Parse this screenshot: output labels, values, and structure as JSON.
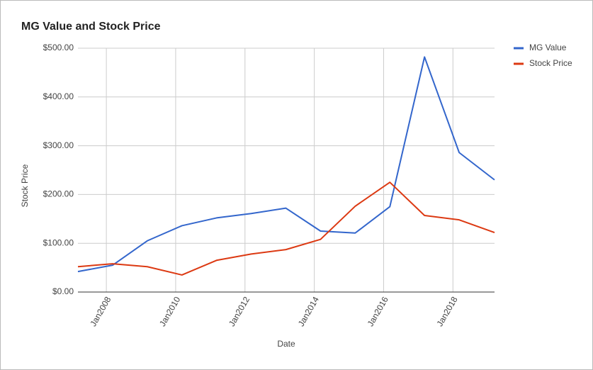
{
  "chart_data": {
    "type": "line",
    "title": "MG Value and Stock Price",
    "x_label": "Date",
    "y_label": "Stock Price",
    "x": [
      2007.18,
      2008.18,
      2009.18,
      2010.18,
      2011.18,
      2012.18,
      2013.18,
      2014.18,
      2015.18,
      2016.18,
      2017.18,
      2018.18,
      2019.2
    ],
    "series": [
      {
        "name": "MG Value",
        "color": "#3366cc",
        "values": [
          42,
          55,
          105,
          136,
          152,
          161,
          172,
          125,
          121,
          175,
          482,
          286,
          230
        ]
      },
      {
        "name": "Stock Price",
        "color": "#dc3912",
        "values": [
          52,
          58,
          52,
          35,
          65,
          78,
          87,
          108,
          176,
          225,
          157,
          148,
          122
        ]
      }
    ],
    "xlim": [
      2007.18,
      2019.2
    ],
    "xticks": [
      {
        "value": 2008,
        "label": "Jan2008"
      },
      {
        "value": 2010,
        "label": "Jan2010"
      },
      {
        "value": 2012,
        "label": "Jan2012"
      },
      {
        "value": 2014,
        "label": "Jan2014"
      },
      {
        "value": 2016,
        "label": "Jan2016"
      },
      {
        "value": 2018,
        "label": "Jan2018"
      }
    ],
    "ylim": [
      0,
      500
    ],
    "yticks": [
      {
        "value": 0,
        "label": "$0.00"
      },
      {
        "value": 100,
        "label": "$100.00"
      },
      {
        "value": 200,
        "label": "$200.00"
      },
      {
        "value": 300,
        "label": "$300.00"
      },
      {
        "value": 400,
        "label": "$400.00"
      },
      {
        "value": 500,
        "label": "$500.00"
      }
    ],
    "grid": true,
    "legend": "right"
  }
}
